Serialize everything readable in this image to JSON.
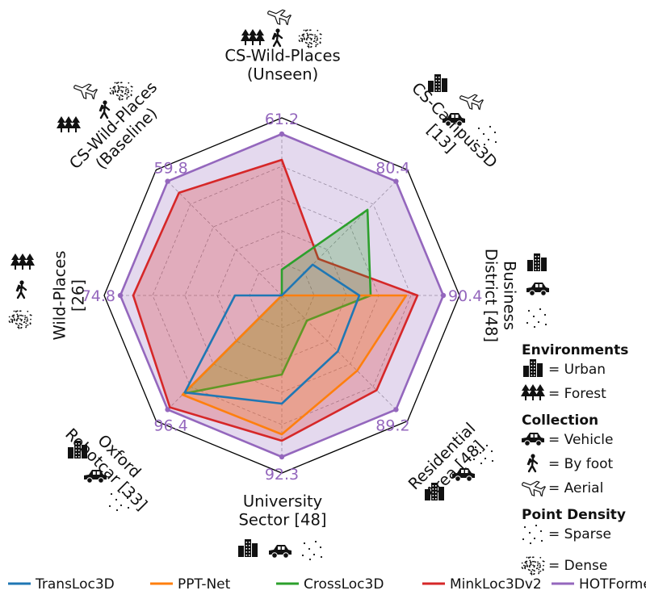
{
  "chart_data": {
    "type": "radar",
    "axes": [
      {
        "label": [
          "CS-Wild-Places",
          "(Unseen)"
        ],
        "max_value": "61.2",
        "max": 61.2,
        "icons": [
          "aerial-icon",
          "forest-icon",
          "by-foot-icon",
          "dense-icon"
        ]
      },
      {
        "label": [
          "CS-Campus3D",
          "[13]"
        ],
        "max_value": "80.4",
        "max": 80.4,
        "icons": [
          "urban-icon",
          "aerial-icon",
          "vehicle-icon",
          "sparse-icon"
        ]
      },
      {
        "label": [
          "Business",
          "District [48]"
        ],
        "max_value": "90.4",
        "max": 90.4,
        "icons": [
          "urban-icon",
          "vehicle-icon",
          "sparse-icon"
        ]
      },
      {
        "label": [
          "Residential",
          "Area [48]"
        ],
        "max_value": "89.2",
        "max": 89.2,
        "icons": [
          "urban-icon",
          "vehicle-icon",
          "sparse-icon"
        ]
      },
      {
        "label": [
          "University",
          "Sector [48]"
        ],
        "max_value": "92.3",
        "max": 92.3,
        "icons": [
          "urban-icon",
          "vehicle-icon",
          "sparse-icon"
        ]
      },
      {
        "label": [
          "Oxford",
          "Robotcar [33]"
        ],
        "max_value": "96.4",
        "max": 96.4,
        "icons": [
          "urban-icon",
          "vehicle-icon",
          "sparse-icon"
        ]
      },
      {
        "label": [
          "Wild-Places",
          "[26]"
        ],
        "max_value": "74.8",
        "max": 74.8,
        "icons": [
          "forest-icon",
          "by-foot-icon",
          "dense-icon"
        ]
      },
      {
        "label": [
          "CS-Wild-Places",
          "(Baseline)"
        ],
        "max_value": "59.8",
        "max": 59.8,
        "icons": [
          "aerial-icon",
          "dense-icon",
          "forest-icon",
          "by-foot-icon"
        ]
      }
    ],
    "series": [
      {
        "name": "TransLoc3D",
        "color": "#1f77b4",
        "fill": false,
        "values": [
          0.0,
          0.27,
          0.48,
          0.49,
          0.67,
          0.85,
          0.29,
          0.0
        ]
      },
      {
        "name": "PPT-Net",
        "color": "#ff7f0e",
        "fill": true,
        "values": [
          0.0,
          0.0,
          0.77,
          0.66,
          0.86,
          0.87,
          0.0,
          0.0
        ]
      },
      {
        "name": "CrossLoc3D",
        "color": "#2ca02c",
        "fill": true,
        "values": [
          0.16,
          0.75,
          0.55,
          0.22,
          0.49,
          0.86,
          0.0,
          0.0
        ]
      },
      {
        "name": "MinkLoc3Dv2",
        "color": "#d62728",
        "fill": true,
        "values": [
          0.84,
          0.32,
          0.84,
          0.83,
          0.9,
          0.98,
          0.92,
          0.9
        ]
      },
      {
        "name": "HOTFormerLoc",
        "color": "#9467bd",
        "fill": true,
        "values": [
          1.0,
          1.0,
          1.0,
          1.0,
          1.0,
          1.0,
          1.0,
          1.0
        ]
      }
    ],
    "grid": true,
    "rlim": [
      0,
      1
    ],
    "legend_position": "bottom"
  },
  "key": {
    "groups": [
      {
        "title": "Environments",
        "items": [
          {
            "icon": "urban-icon",
            "label": "= Urban"
          },
          {
            "icon": "forest-icon",
            "label": "= Forest"
          }
        ]
      },
      {
        "title": "Collection",
        "items": [
          {
            "icon": "vehicle-icon",
            "label": "= Vehicle"
          },
          {
            "icon": "by-foot-icon",
            "label": "= By foot"
          },
          {
            "icon": "aerial-icon",
            "label": "= Aerial"
          }
        ]
      },
      {
        "title": "Point Density",
        "items": [
          {
            "icon": "sparse-icon",
            "label": "= Sparse"
          },
          {
            "icon": "dense-icon",
            "label": "= Dense"
          }
        ]
      }
    ]
  }
}
